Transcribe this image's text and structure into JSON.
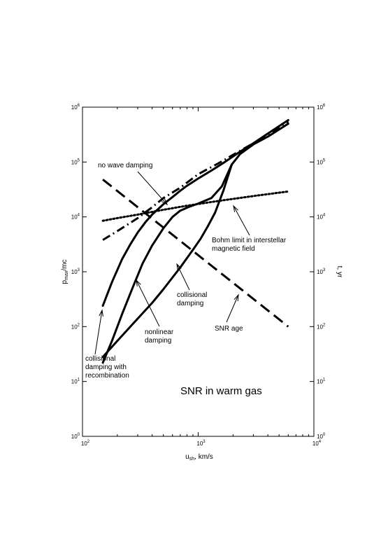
{
  "chart_data": {
    "type": "line",
    "x_scale": "log",
    "y_scale": "log",
    "xlim": [
      100,
      10000
    ],
    "ylim": [
      1,
      1000000
    ],
    "y2lim": [
      1,
      1000000
    ],
    "grid": false,
    "legend": "none",
    "xlabel_parts": {
      "base": "u",
      "sub": "sh",
      "rest": ", km/s"
    },
    "ylabel_parts": {
      "base": "p",
      "sub": "max",
      "rest": "/mc"
    },
    "y2label": "t, yr",
    "x_ticks": [
      {
        "value": 100,
        "base": "10",
        "exp": "2"
      },
      {
        "value": 1000,
        "base": "10",
        "exp": "3"
      },
      {
        "value": 10000,
        "base": "10",
        "exp": "4"
      }
    ],
    "y_ticks": [
      {
        "value": 1,
        "base": "10",
        "exp": "0"
      },
      {
        "value": 10,
        "base": "10",
        "exp": "1"
      },
      {
        "value": 100,
        "base": "10",
        "exp": "2"
      },
      {
        "value": 1000,
        "base": "10",
        "exp": "3"
      },
      {
        "value": 10000,
        "base": "10",
        "exp": "4"
      },
      {
        "value": 100000,
        "base": "10",
        "exp": "5"
      },
      {
        "value": 1000000,
        "base": "10",
        "exp": "6"
      }
    ],
    "series": [
      {
        "style": "dotted",
        "points": [
          [
            150,
            8500
          ],
          [
            200,
            9500
          ],
          [
            300,
            11000
          ],
          [
            500,
            13500
          ],
          [
            800,
            16000
          ],
          [
            1500,
            19500
          ],
          [
            3000,
            24000
          ],
          [
            6000,
            29000
          ]
        ]
      },
      {
        "style": "dashdot",
        "points": [
          [
            150,
            3800
          ],
          [
            200,
            5500
          ],
          [
            300,
            9500
          ],
          [
            400,
            15000
          ],
          [
            500,
            22000
          ],
          [
            700,
            34000
          ],
          [
            1000,
            60000
          ],
          [
            1500,
            95000
          ],
          [
            2000,
            135000
          ],
          [
            3000,
            220000
          ],
          [
            4000,
            320000
          ],
          [
            6000,
            550000
          ]
        ]
      },
      {
        "style": "dashed",
        "points": [
          [
            150,
            48000
          ],
          [
            6000,
            100
          ]
        ]
      },
      {
        "style": "solid",
        "points": [
          [
            150,
            240
          ],
          [
            180,
            650
          ],
          [
            220,
            1700
          ],
          [
            260,
            3200
          ],
          [
            300,
            5200
          ],
          [
            350,
            8000
          ],
          [
            400,
            11000
          ],
          [
            500,
            17000
          ],
          [
            600,
            23000
          ],
          [
            700,
            30000
          ],
          [
            800,
            37000
          ],
          [
            1000,
            50000
          ],
          [
            1300,
            70000
          ],
          [
            1700,
            100000
          ],
          [
            2200,
            145000
          ],
          [
            3000,
            220000
          ],
          [
            4000,
            330000
          ],
          [
            6000,
            580000
          ]
        ]
      },
      {
        "style": "solid",
        "points": [
          [
            150,
            22
          ],
          [
            180,
            55
          ],
          [
            220,
            170
          ],
          [
            270,
            500
          ],
          [
            330,
            1400
          ],
          [
            400,
            3000
          ],
          [
            500,
            6200
          ],
          [
            600,
            10000
          ],
          [
            700,
            13000
          ],
          [
            850,
            15500
          ],
          [
            1000,
            17500
          ],
          [
            1300,
            22000
          ],
          [
            1600,
            36000
          ],
          [
            1950,
            90000
          ],
          [
            2300,
            140000
          ],
          [
            3000,
            210000
          ],
          [
            4000,
            290000
          ],
          [
            6000,
            500000
          ]
        ]
      },
      {
        "style": "solid",
        "points": [
          [
            150,
            28
          ],
          [
            200,
            55
          ],
          [
            300,
            140
          ],
          [
            400,
            270
          ],
          [
            500,
            480
          ],
          [
            700,
            1200
          ],
          [
            900,
            2500
          ],
          [
            1050,
            4000
          ],
          [
            1200,
            6500
          ],
          [
            1400,
            12000
          ],
          [
            1650,
            30000
          ],
          [
            1950,
            90000
          ]
        ]
      }
    ],
    "annotations": [
      {
        "lines": [
          "no wave damping"
        ],
        "tx": 140,
        "ty": 239,
        "anchor": "start",
        "ax1": 197,
        "ay1": 245,
        "ax2": 239,
        "ay2": 292
      },
      {
        "lines": [
          "Bohm limit in interstellar",
          "magnetic field"
        ],
        "tx": 303,
        "ty": 346,
        "anchor": "start",
        "ax1": 357,
        "ay1": 336,
        "ax2": 334,
        "ay2": 294
      },
      {
        "lines": [
          "collisional",
          "damping"
        ],
        "tx": 253,
        "ty": 424,
        "anchor": "start",
        "ax1": 271,
        "ay1": 414,
        "ax2": 253,
        "ay2": 377
      },
      {
        "lines": [
          "nonlinear",
          "damping"
        ],
        "tx": 207,
        "ty": 477,
        "anchor": "start",
        "ax1": 228,
        "ay1": 466,
        "ax2": 195,
        "ay2": 400
      },
      {
        "lines": [
          "SNR age"
        ],
        "tx": 307,
        "ty": 472,
        "anchor": "start",
        "ax1": 324,
        "ay1": 460,
        "ax2": 341,
        "ay2": 421
      },
      {
        "lines": [
          "collisional",
          "damping with",
          "recombination"
        ],
        "tx": 122,
        "ty": 515,
        "anchor": "start",
        "ax1": 136,
        "ay1": 506,
        "ax2": 146,
        "ay2": 443
      }
    ],
    "in_plot_text": "SNR in warm gas"
  }
}
